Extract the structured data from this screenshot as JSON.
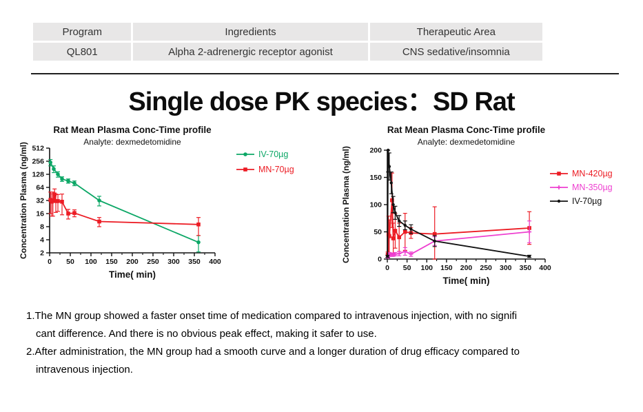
{
  "table": {
    "headers": [
      "Program",
      "Ingredients",
      "Therapeutic Area"
    ],
    "row": [
      "QL801",
      "Alpha 2-adrenergic receptor agonist",
      "CNS sedative/insomnia"
    ]
  },
  "title": "Single dose PK  species：SD Rat",
  "chart_data": [
    {
      "type": "line",
      "title": "Rat Mean Plasma Conc-Time profile",
      "subtitle": "Analyte: dexmedetomidine",
      "xlabel": "Time( min)",
      "ylabel": "Concentration Plasma (ng/ml)",
      "xlim": [
        0,
        400
      ],
      "x_ticks": [
        0,
        50,
        100,
        150,
        200,
        250,
        300,
        350,
        400
      ],
      "y_scale": "log2",
      "ylim": [
        2,
        512
      ],
      "y_ticks": [
        512,
        256,
        128,
        64,
        32,
        16,
        8,
        4,
        2
      ],
      "legend_position": "right",
      "grid": false,
      "series": [
        {
          "name": "IV-70µg",
          "color": "#0ca766",
          "marker": "circle",
          "x": [
            2,
            10,
            20,
            30,
            45,
            60,
            120,
            360
          ],
          "y": [
            240,
            170,
            128,
            100,
            90,
            80,
            32,
            3.5
          ],
          "err": [
            40,
            30,
            18,
            12,
            10,
            10,
            8,
            1.5
          ]
        },
        {
          "name": "MN-70µg",
          "color": "#ec1c24",
          "marker": "square",
          "x": [
            2,
            5,
            8,
            12,
            15,
            20,
            30,
            45,
            60,
            120,
            360
          ],
          "y": [
            33,
            30,
            32,
            44,
            31,
            31,
            30,
            16,
            16.5,
            10.5,
            9
          ],
          "err": [
            17,
            16,
            18,
            15,
            14,
            13,
            15,
            4,
            3,
            2.5,
            4
          ]
        }
      ]
    },
    {
      "type": "line",
      "title": "Rat Mean Plasma Conc-Time profile",
      "subtitle": "Analyte: dexmedetomidine",
      "xlabel": "Time( min)",
      "ylabel": "Concentration Plasma (ng/ml)",
      "xlim": [
        0,
        400
      ],
      "x_ticks": [
        0,
        50,
        100,
        150,
        200,
        250,
        300,
        350,
        400
      ],
      "y_scale": "linear",
      "ylim": [
        0,
        200
      ],
      "y_ticks": [
        0,
        50,
        100,
        150,
        200
      ],
      "legend_position": "right",
      "grid": false,
      "series": [
        {
          "name": "MN-420µg",
          "color": "#ec1c24",
          "marker": "square",
          "x": [
            1,
            3,
            5,
            12,
            15,
            20,
            30,
            45,
            60,
            120,
            360
          ],
          "y": [
            8,
            45,
            42,
            108,
            38,
            52,
            40,
            50,
            48,
            46,
            57
          ],
          "err": [
            5,
            34,
            30,
            50,
            28,
            32,
            26,
            34,
            10,
            50,
            30
          ]
        },
        {
          "name": "MN-350µg",
          "color": "#ee3fd0",
          "marker": "plus",
          "x": [
            2,
            5,
            8,
            12,
            15,
            20,
            30,
            45,
            60,
            120,
            360
          ],
          "y": [
            4,
            9,
            8,
            8,
            8,
            9,
            10,
            14,
            9,
            33,
            50
          ],
          "err": [
            2,
            3,
            3,
            3,
            3,
            3,
            4,
            7,
            4,
            8,
            20
          ]
        },
        {
          "name": "IV-70µg",
          "color": "#111111",
          "marker": "dot",
          "x": [
            0.5,
            2,
            5,
            10,
            15,
            20,
            30,
            45,
            60,
            120,
            360
          ],
          "y": [
            5,
            200,
            170,
            140,
            100,
            85,
            70,
            62,
            55,
            33,
            5
          ],
          "err": [
            2,
            40,
            25,
            20,
            15,
            12,
            10,
            8,
            8,
            10,
            2
          ]
        }
      ]
    }
  ],
  "notes": [
    {
      "lines": [
        "1.The MN group showed a faster onset time of medication compared to intravenous injection, with no signifi",
        "cant difference. And there is no obvious peak effect, making it safer to use."
      ]
    },
    {
      "lines": [
        "2.After administration, the MN group had a smooth curve and a longer duration of drug efficacy compared to",
        "intravenous injection."
      ]
    }
  ]
}
